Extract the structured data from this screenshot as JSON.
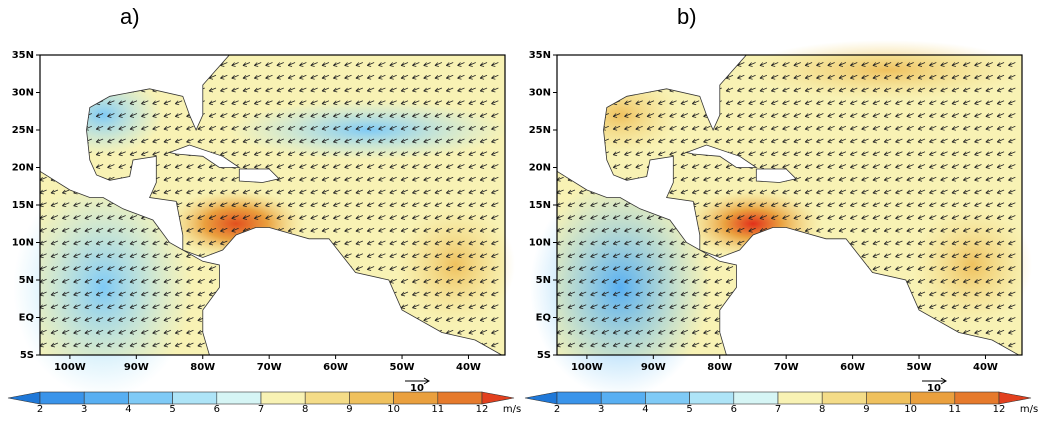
{
  "panels": [
    {
      "label": "a)"
    },
    {
      "label": "b)"
    }
  ],
  "lat_ticks": [
    "35N",
    "30N",
    "25N",
    "20N",
    "15N",
    "10N",
    "5N",
    "EQ",
    "5S"
  ],
  "lon_ticks": [
    "100W",
    "90W",
    "80W",
    "70W",
    "60W",
    "50W",
    "40W"
  ],
  "reference_vector": {
    "label": "10"
  },
  "colorbar": {
    "ticks": [
      2,
      3,
      4,
      5,
      6,
      7,
      8,
      9,
      10,
      11,
      12
    ],
    "unit": "m/s",
    "colors": [
      "#1f78d8",
      "#3a94ea",
      "#58aff2",
      "#7fcaf6",
      "#aee4f7",
      "#d6f5f5",
      "#f8f2b4",
      "#f4dc88",
      "#efc15e",
      "#eaa03e",
      "#e67a2c",
      "#e2401e"
    ]
  }
}
